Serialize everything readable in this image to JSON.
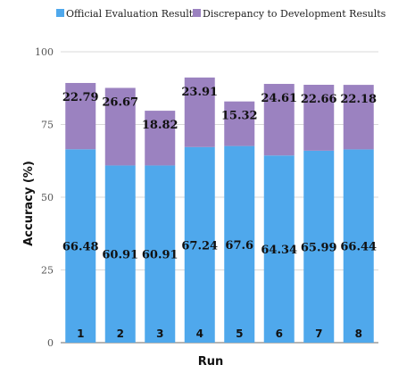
{
  "chart_data": {
    "type": "bar",
    "stacked": true,
    "categories": [
      "1",
      "2",
      "3",
      "4",
      "5",
      "6",
      "7",
      "8"
    ],
    "series": [
      {
        "name": "Official Evaluation Results",
        "values": [
          66.48,
          60.91,
          60.91,
          67.24,
          67.6,
          64.34,
          65.99,
          66.44
        ],
        "color": "#4fa8ec"
      },
      {
        "name": "Discrepancy to Development Results",
        "values": [
          22.79,
          26.67,
          18.82,
          23.91,
          15.32,
          24.61,
          22.66,
          22.18
        ],
        "color": "#9b82c0"
      }
    ],
    "xlabel": "Run",
    "ylabel": "Accuracy (%)",
    "ylim": [
      0,
      100
    ],
    "yticks": [
      0,
      25,
      50,
      75,
      100
    ],
    "grid": true,
    "legend": "top"
  }
}
